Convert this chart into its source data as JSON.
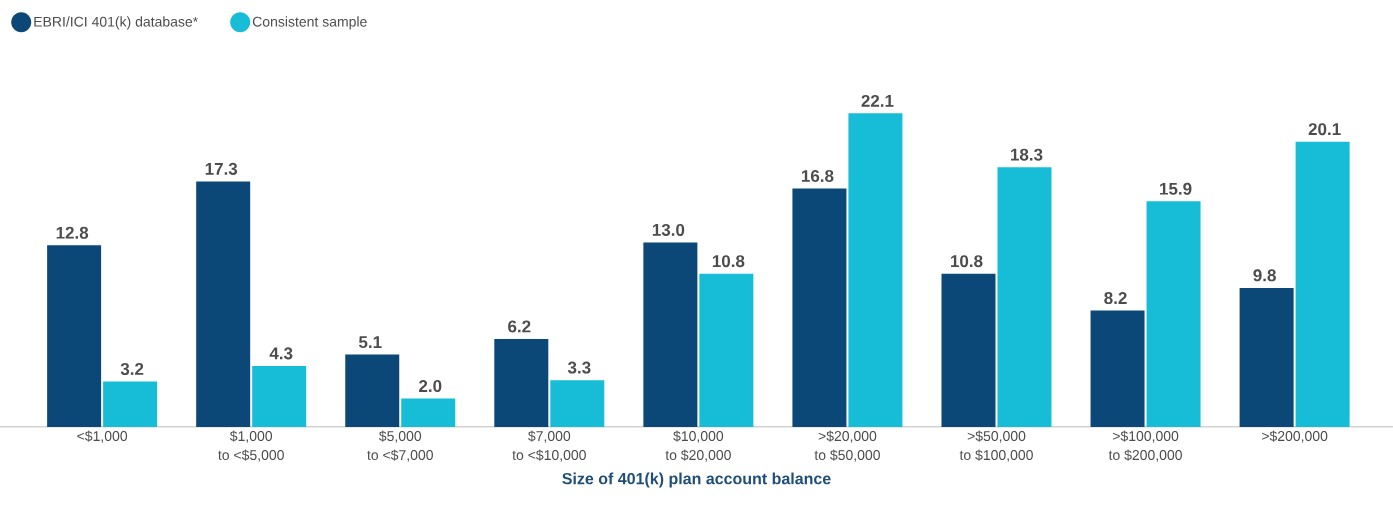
{
  "chart_data": {
    "type": "bar",
    "xlabel": "Size of 401(k) plan account balance",
    "categories": [
      "<$1,000",
      "$1,000\nto <$5,000",
      "$5,000\nto <$7,000",
      "$7,000\nto <$10,000",
      "$10,000\nto $20,000",
      ">$20,000\nto $50,000",
      ">$50,000\nto $100,000",
      ">$100,000\nto $200,000",
      ">$200,000"
    ],
    "series": [
      {
        "name": "EBRI/ICI 401(k) database*",
        "color": "#0b4777",
        "values": [
          12.8,
          17.3,
          5.1,
          6.2,
          13.0,
          16.8,
          10.8,
          8.2,
          9.8
        ],
        "value_labels": [
          "12.8",
          "17.3",
          "5.1",
          "6.2",
          "13.0",
          "16.8",
          "10.8",
          "8.2",
          "9.8"
        ]
      },
      {
        "name": "Consistent sample",
        "color": "#17bcd7",
        "values": [
          3.2,
          4.3,
          2.0,
          3.3,
          10.8,
          22.1,
          18.3,
          15.9,
          20.1
        ],
        "value_labels": [
          "3.2",
          "4.3",
          "2.0",
          "3.3",
          "10.8",
          "22.1",
          "18.3",
          "15.9",
          "20.1"
        ]
      }
    ],
    "legend": "top left"
  }
}
